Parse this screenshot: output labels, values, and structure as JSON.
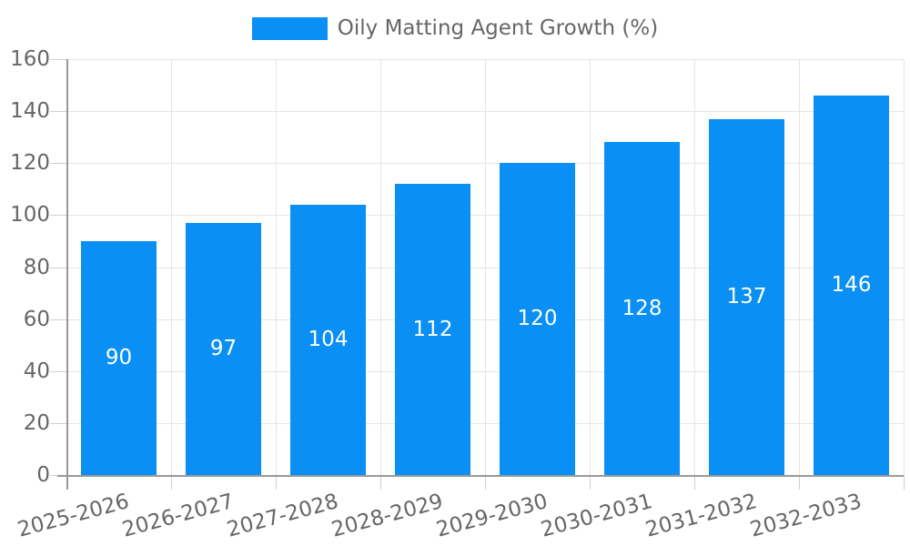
{
  "legend": {
    "label": "Oily Matting Agent Growth (%)"
  },
  "chart_data": {
    "type": "bar",
    "title": "",
    "series_name": "Oily Matting Agent Growth (%)",
    "categories": [
      "2025-2026",
      "2026-2027",
      "2027-2028",
      "2028-2029",
      "2029-2030",
      "2030-2031",
      "2031-2032",
      "2032-2033"
    ],
    "values": [
      90,
      97,
      104,
      112,
      120,
      128,
      137,
      146
    ],
    "value_labels": [
      "90",
      "97",
      "104",
      "112",
      "120",
      "128",
      "137",
      "146"
    ],
    "xlabel": "",
    "ylabel": "",
    "ylim": [
      0,
      160
    ],
    "y_ticks": [
      0,
      20,
      40,
      60,
      80,
      100,
      120,
      140,
      160
    ],
    "y_tick_labels": [
      "0",
      "20",
      "40",
      "60",
      "80",
      "100",
      "120",
      "140",
      "160"
    ],
    "grid": true,
    "legend_position": "top",
    "value_label_position": "inside-center"
  },
  "colors": {
    "bar": "#0a8ff5",
    "value_text": "#ffffff",
    "axis_line": "#999999",
    "gridline": "#e5e5e5",
    "tick_stub": "#cfcfcf",
    "tick_text": "#666666",
    "background": "#ffffff"
  }
}
